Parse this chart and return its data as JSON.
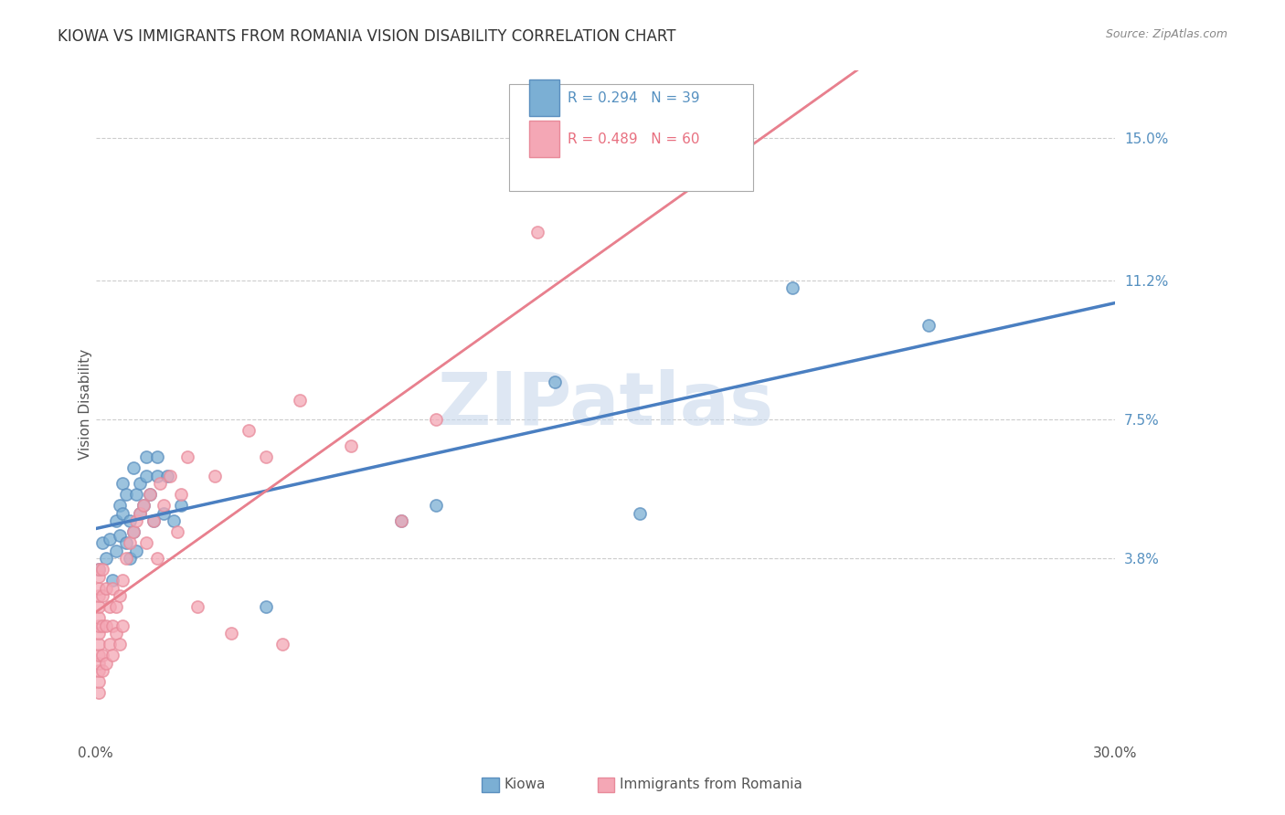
{
  "title": "KIOWA VS IMMIGRANTS FROM ROMANIA VISION DISABILITY CORRELATION CHART",
  "source": "Source: ZipAtlas.com",
  "ylabel": "Vision Disability",
  "xlim": [
    0.0,
    0.3
  ],
  "ylim": [
    -0.01,
    0.168
  ],
  "ytick_labels": [
    "3.8%",
    "7.5%",
    "11.2%",
    "15.0%"
  ],
  "ytick_positions": [
    0.038,
    0.075,
    0.112,
    0.15
  ],
  "kiowa_color": "#7BAFD4",
  "romania_color": "#F4A7B5",
  "kiowa_edge": "#5B8FBF",
  "romania_edge": "#E88A9A",
  "kiowa_line_color": "#4A7FC1",
  "romania_line_color": "#E8808E",
  "romania_dash_color": "#F0B0BC",
  "watermark_color": "#C8D8EC",
  "kiowa_x": [
    0.001,
    0.002,
    0.003,
    0.004,
    0.005,
    0.006,
    0.006,
    0.007,
    0.007,
    0.008,
    0.008,
    0.009,
    0.009,
    0.01,
    0.01,
    0.011,
    0.011,
    0.012,
    0.012,
    0.013,
    0.013,
    0.014,
    0.015,
    0.015,
    0.016,
    0.017,
    0.018,
    0.018,
    0.02,
    0.021,
    0.023,
    0.025,
    0.05,
    0.09,
    0.1,
    0.135,
    0.16,
    0.205,
    0.245
  ],
  "kiowa_y": [
    0.035,
    0.042,
    0.038,
    0.043,
    0.032,
    0.04,
    0.048,
    0.044,
    0.052,
    0.05,
    0.058,
    0.042,
    0.055,
    0.038,
    0.048,
    0.062,
    0.045,
    0.055,
    0.04,
    0.058,
    0.05,
    0.052,
    0.06,
    0.065,
    0.055,
    0.048,
    0.06,
    0.065,
    0.05,
    0.06,
    0.048,
    0.052,
    0.025,
    0.048,
    0.052,
    0.085,
    0.05,
    0.11,
    0.1
  ],
  "romania_x": [
    0.001,
    0.001,
    0.001,
    0.001,
    0.001,
    0.001,
    0.001,
    0.001,
    0.001,
    0.001,
    0.001,
    0.001,
    0.001,
    0.001,
    0.002,
    0.002,
    0.002,
    0.002,
    0.002,
    0.003,
    0.003,
    0.003,
    0.004,
    0.004,
    0.005,
    0.005,
    0.005,
    0.006,
    0.006,
    0.007,
    0.007,
    0.008,
    0.008,
    0.009,
    0.01,
    0.011,
    0.012,
    0.013,
    0.014,
    0.015,
    0.016,
    0.017,
    0.018,
    0.019,
    0.02,
    0.022,
    0.024,
    0.025,
    0.027,
    0.03,
    0.035,
    0.04,
    0.045,
    0.05,
    0.055,
    0.06,
    0.075,
    0.09,
    0.1,
    0.13
  ],
  "romania_y": [
    0.002,
    0.005,
    0.008,
    0.01,
    0.012,
    0.015,
    0.018,
    0.02,
    0.022,
    0.025,
    0.028,
    0.03,
    0.033,
    0.035,
    0.008,
    0.012,
    0.02,
    0.028,
    0.035,
    0.01,
    0.02,
    0.03,
    0.015,
    0.025,
    0.012,
    0.02,
    0.03,
    0.018,
    0.025,
    0.015,
    0.028,
    0.02,
    0.032,
    0.038,
    0.042,
    0.045,
    0.048,
    0.05,
    0.052,
    0.042,
    0.055,
    0.048,
    0.038,
    0.058,
    0.052,
    0.06,
    0.045,
    0.055,
    0.065,
    0.025,
    0.06,
    0.018,
    0.072,
    0.065,
    0.015,
    0.08,
    0.068,
    0.048,
    0.075,
    0.125
  ],
  "kiowa_trendline": [
    0.04,
    0.09
  ],
  "romania_trendline_solid": [
    0.02,
    0.072
  ],
  "romania_trendline_dash": [
    0.0,
    0.18
  ]
}
